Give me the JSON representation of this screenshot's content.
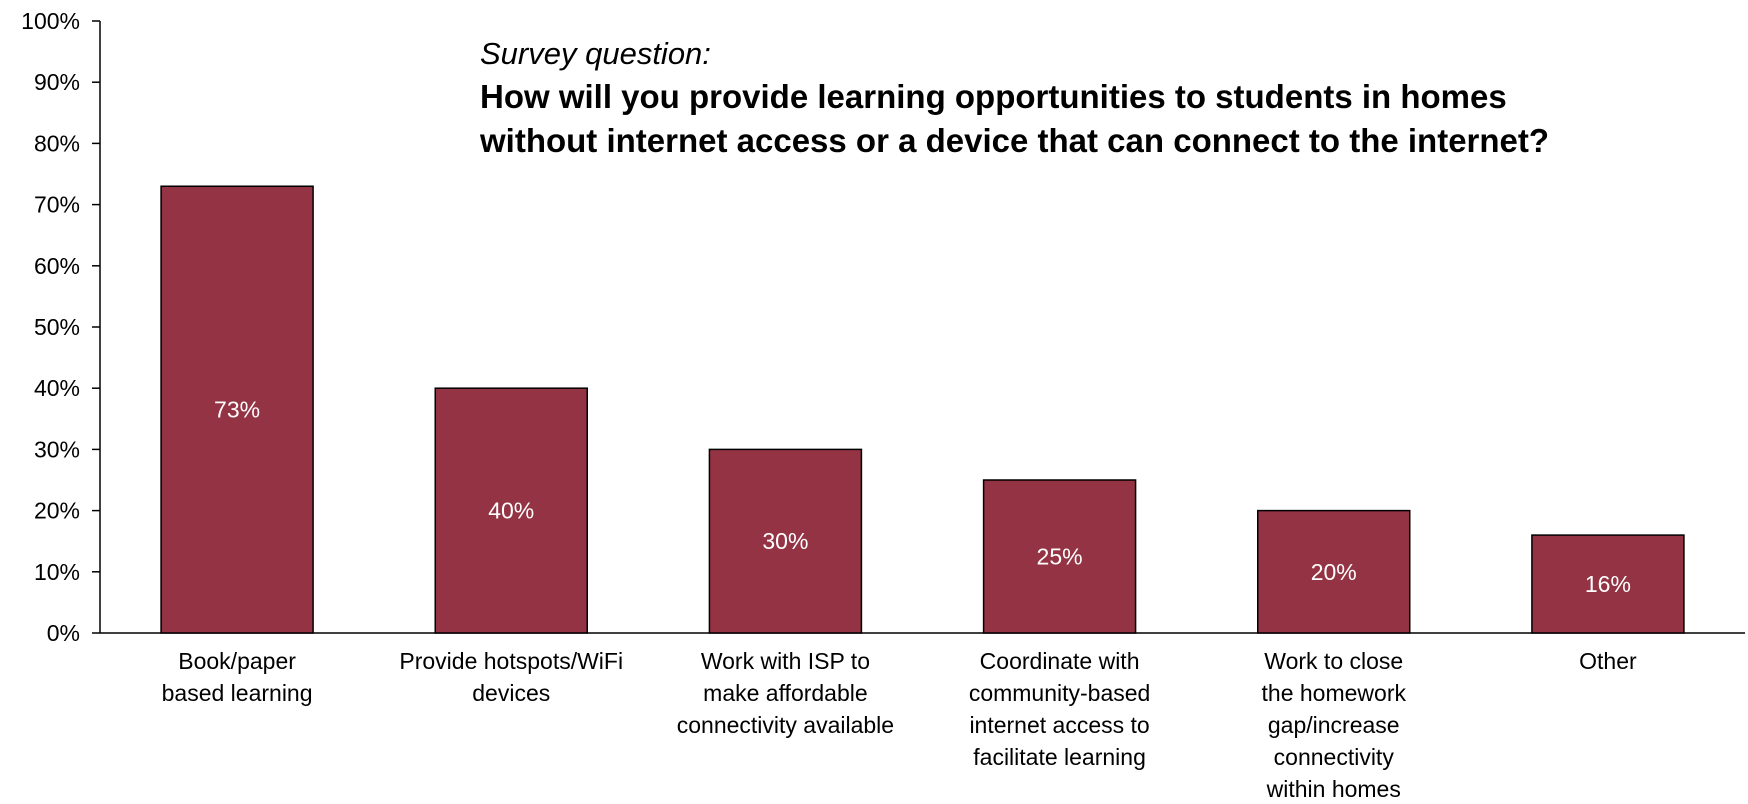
{
  "chart_data": {
    "type": "bar",
    "subtitle": "Survey question:",
    "title_lines": [
      "How will you provide learning opportunities to students in homes",
      "without internet access or a device that can connect to the internet?"
    ],
    "categories": [
      [
        "Book/paper",
        "based learning"
      ],
      [
        "Provide hotspots/WiFi",
        "devices"
      ],
      [
        "Work with ISP to",
        "make affordable",
        "connectivity available"
      ],
      [
        "Coordinate with",
        "community-based",
        "internet access to",
        "facilitate learning"
      ],
      [
        "Work to close",
        "the homework",
        "gap/increase",
        "connectivity",
        "within homes"
      ],
      [
        "Other"
      ]
    ],
    "values": [
      73,
      40,
      30,
      25,
      20,
      16
    ],
    "data_labels": [
      "73%",
      "40%",
      "30%",
      "25%",
      "20%",
      "16%"
    ],
    "ylim": [
      0,
      100
    ],
    "yticks": [
      0,
      10,
      20,
      30,
      40,
      50,
      60,
      70,
      80,
      90,
      100
    ],
    "ytick_labels": [
      "0%",
      "10%",
      "20%",
      "30%",
      "40%",
      "50%",
      "60%",
      "70%",
      "80%",
      "90%",
      "100%"
    ],
    "xlabel": "",
    "ylabel": "",
    "grid": false,
    "legend": "none",
    "colors": {
      "bar": "#943344",
      "bar_edge": "#000000",
      "axis": "#000000",
      "bar_label": "#ffffff"
    }
  }
}
